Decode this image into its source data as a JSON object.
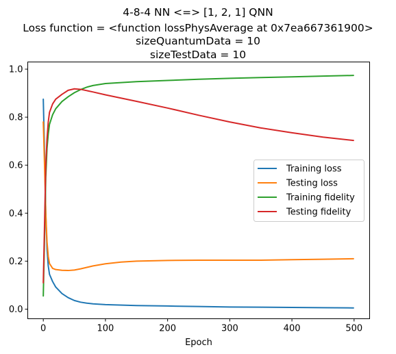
{
  "chart_data": {
    "type": "line",
    "title_lines": [
      "4-8-4 NN <=> [1, 2, 1] QNN",
      "Loss function = <function lossPhysAverage at 0x7ea667361900>",
      "sizeQuantumData = 10",
      "sizeTestData = 10"
    ],
    "xlabel": "Epoch",
    "ylabel": "",
    "xlim": [
      -25,
      525
    ],
    "ylim": [
      -0.04,
      1.03
    ],
    "xticks": [
      0,
      100,
      200,
      300,
      400,
      500
    ],
    "yticks": [
      0.0,
      0.2,
      0.4,
      0.6,
      0.8,
      1.0
    ],
    "ytick_labels": [
      "0.0",
      "0.2",
      "0.4",
      "0.6",
      "0.8",
      "1.0"
    ],
    "grid": false,
    "legend_position": "center-right",
    "series": [
      {
        "name": "Training loss",
        "color": "#1f77b4",
        "points": [
          [
            0,
            0.875
          ],
          [
            2,
            0.65
          ],
          [
            4,
            0.4
          ],
          [
            6,
            0.25
          ],
          [
            8,
            0.18
          ],
          [
            10,
            0.145
          ],
          [
            15,
            0.115
          ],
          [
            20,
            0.092
          ],
          [
            30,
            0.065
          ],
          [
            40,
            0.048
          ],
          [
            50,
            0.036
          ],
          [
            60,
            0.029
          ],
          [
            70,
            0.025
          ],
          [
            80,
            0.022
          ],
          [
            100,
            0.019
          ],
          [
            150,
            0.015
          ],
          [
            200,
            0.013
          ],
          [
            250,
            0.011
          ],
          [
            300,
            0.009
          ],
          [
            350,
            0.008
          ],
          [
            400,
            0.007
          ],
          [
            450,
            0.006
          ],
          [
            499,
            0.005
          ]
        ]
      },
      {
        "name": "Testing loss",
        "color": "#ff7f0e",
        "points": [
          [
            0,
            0.78
          ],
          [
            2,
            0.6
          ],
          [
            4,
            0.4
          ],
          [
            6,
            0.28
          ],
          [
            8,
            0.22
          ],
          [
            10,
            0.19
          ],
          [
            15,
            0.17
          ],
          [
            20,
            0.165
          ],
          [
            30,
            0.162
          ],
          [
            40,
            0.161
          ],
          [
            50,
            0.163
          ],
          [
            60,
            0.168
          ],
          [
            70,
            0.174
          ],
          [
            80,
            0.18
          ],
          [
            100,
            0.189
          ],
          [
            125,
            0.196
          ],
          [
            150,
            0.2
          ],
          [
            200,
            0.203
          ],
          [
            250,
            0.204
          ],
          [
            300,
            0.204
          ],
          [
            350,
            0.204
          ],
          [
            400,
            0.206
          ],
          [
            450,
            0.208
          ],
          [
            499,
            0.21
          ]
        ]
      },
      {
        "name": "Training fidelity",
        "color": "#2ca02c",
        "points": [
          [
            0,
            0.055
          ],
          [
            2,
            0.3
          ],
          [
            4,
            0.55
          ],
          [
            6,
            0.67
          ],
          [
            8,
            0.73
          ],
          [
            10,
            0.77
          ],
          [
            15,
            0.81
          ],
          [
            20,
            0.835
          ],
          [
            30,
            0.865
          ],
          [
            40,
            0.885
          ],
          [
            50,
            0.902
          ],
          [
            60,
            0.915
          ],
          [
            70,
            0.925
          ],
          [
            80,
            0.932
          ],
          [
            100,
            0.94
          ],
          [
            150,
            0.948
          ],
          [
            200,
            0.953
          ],
          [
            250,
            0.958
          ],
          [
            300,
            0.962
          ],
          [
            350,
            0.965
          ],
          [
            400,
            0.968
          ],
          [
            450,
            0.971
          ],
          [
            499,
            0.974
          ]
        ]
      },
      {
        "name": "Testing fidelity",
        "color": "#d62728",
        "points": [
          [
            0,
            0.11
          ],
          [
            2,
            0.35
          ],
          [
            4,
            0.6
          ],
          [
            6,
            0.71
          ],
          [
            8,
            0.78
          ],
          [
            10,
            0.82
          ],
          [
            15,
            0.855
          ],
          [
            20,
            0.875
          ],
          [
            30,
            0.895
          ],
          [
            40,
            0.912
          ],
          [
            50,
            0.918
          ],
          [
            60,
            0.916
          ],
          [
            80,
            0.905
          ],
          [
            100,
            0.893
          ],
          [
            150,
            0.866
          ],
          [
            200,
            0.838
          ],
          [
            250,
            0.808
          ],
          [
            300,
            0.78
          ],
          [
            350,
            0.755
          ],
          [
            400,
            0.735
          ],
          [
            450,
            0.717
          ],
          [
            499,
            0.703
          ]
        ]
      }
    ]
  }
}
